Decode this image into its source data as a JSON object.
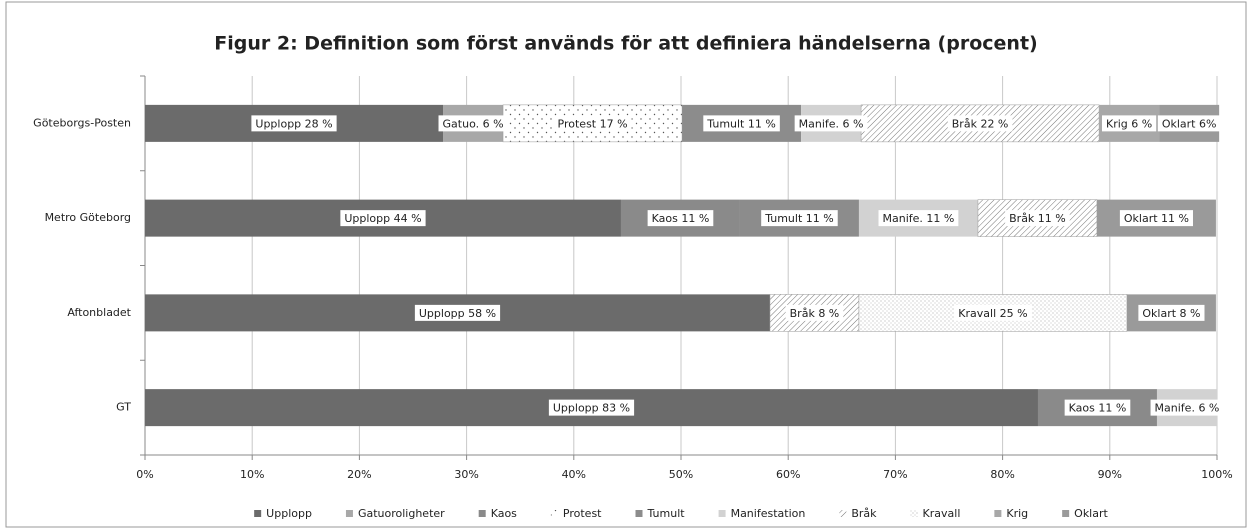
{
  "chart_data": {
    "type": "stacked-barh",
    "title": "Figur 2: Definition som först används för att definiera händelserna (procent)",
    "categories": [
      "Göteborgs-Posten",
      "Metro Göteborg",
      "Aftonbladet",
      "GT"
    ],
    "series": [
      {
        "name": "Upplopp",
        "color": "#6b6b6b",
        "values": [
          27.8,
          44.4,
          58.3,
          83.3
        ],
        "value_labels": [
          "Upplopp 28 %",
          "Upplopp 44 %",
          "Upplopp 58 %",
          "Upplopp 83 %"
        ]
      },
      {
        "name": "Gatuoroligheter",
        "color": "#a8a8a8",
        "values": [
          5.6,
          null,
          null,
          null
        ],
        "value_labels": [
          "Gatuo. 6 %",
          null,
          null,
          null
        ]
      },
      {
        "name": "Kaos",
        "color": "#8a8a8a",
        "values": [
          null,
          11.1,
          null,
          11.1
        ],
        "value_labels": [
          null,
          "Kaos 11 %",
          null,
          "Kaos 11 %"
        ]
      },
      {
        "name": "Protest",
        "color": "#555555",
        "pattern": "sparse-dots",
        "values": [
          16.7,
          null,
          null,
          null
        ],
        "value_labels": [
          "Protest 17 %",
          null,
          null,
          null
        ]
      },
      {
        "name": "Tumult",
        "color": "#8c8c8c",
        "values": [
          11.1,
          11.1,
          null,
          null
        ],
        "value_labels": [
          "Tumult 11 %",
          "Tumult 11 %",
          null,
          null
        ]
      },
      {
        "name": "Manifestation",
        "color": "#d2d2d2",
        "values": [
          5.6,
          11.1,
          null,
          5.6
        ],
        "value_labels": [
          "Manife. 6 %",
          "Manife. 11 %",
          null,
          "Manife. 6 %"
        ]
      },
      {
        "name": "Bråk",
        "color": "#777777",
        "pattern": "hatch",
        "values": [
          22.2,
          11.1,
          8.3,
          null
        ],
        "value_labels": [
          "Bråk 22 %",
          "Bråk 11 %",
          "Bråk 8 %",
          null
        ]
      },
      {
        "name": "Kravall",
        "color": "#999999",
        "pattern": "dense-dots",
        "values": [
          null,
          null,
          25,
          null
        ],
        "value_labels": [
          null,
          null,
          "Kravall 25 %",
          null
        ]
      },
      {
        "name": "Krig",
        "color": "#a8a8a8",
        "values": [
          5.6,
          null,
          null,
          null
        ],
        "value_labels": [
          "Krig 6 %",
          null,
          null,
          null
        ]
      },
      {
        "name": "Oklart",
        "color": "#9a9a9a",
        "values": [
          5.6,
          11.1,
          8.3,
          null
        ],
        "value_labels": [
          "Oklart 6%",
          "Oklart 11 %",
          "Oklart 8 %",
          null
        ]
      }
    ],
    "xlim": [
      0,
      100
    ],
    "xticks": [
      {
        "value": 0,
        "label": "0%"
      },
      {
        "value": 10,
        "label": "10%"
      },
      {
        "value": 20,
        "label": "20%"
      },
      {
        "value": 30,
        "label": "30%"
      },
      {
        "value": 40,
        "label": "40%"
      },
      {
        "value": 50,
        "label": "50%"
      },
      {
        "value": 60,
        "label": "60%"
      },
      {
        "value": 70,
        "label": "70%"
      },
      {
        "value": 80,
        "label": "80%"
      },
      {
        "value": 90,
        "label": "90%"
      },
      {
        "value": 100,
        "label": "100%"
      }
    ],
    "grid": true,
    "legend": "bottom"
  }
}
